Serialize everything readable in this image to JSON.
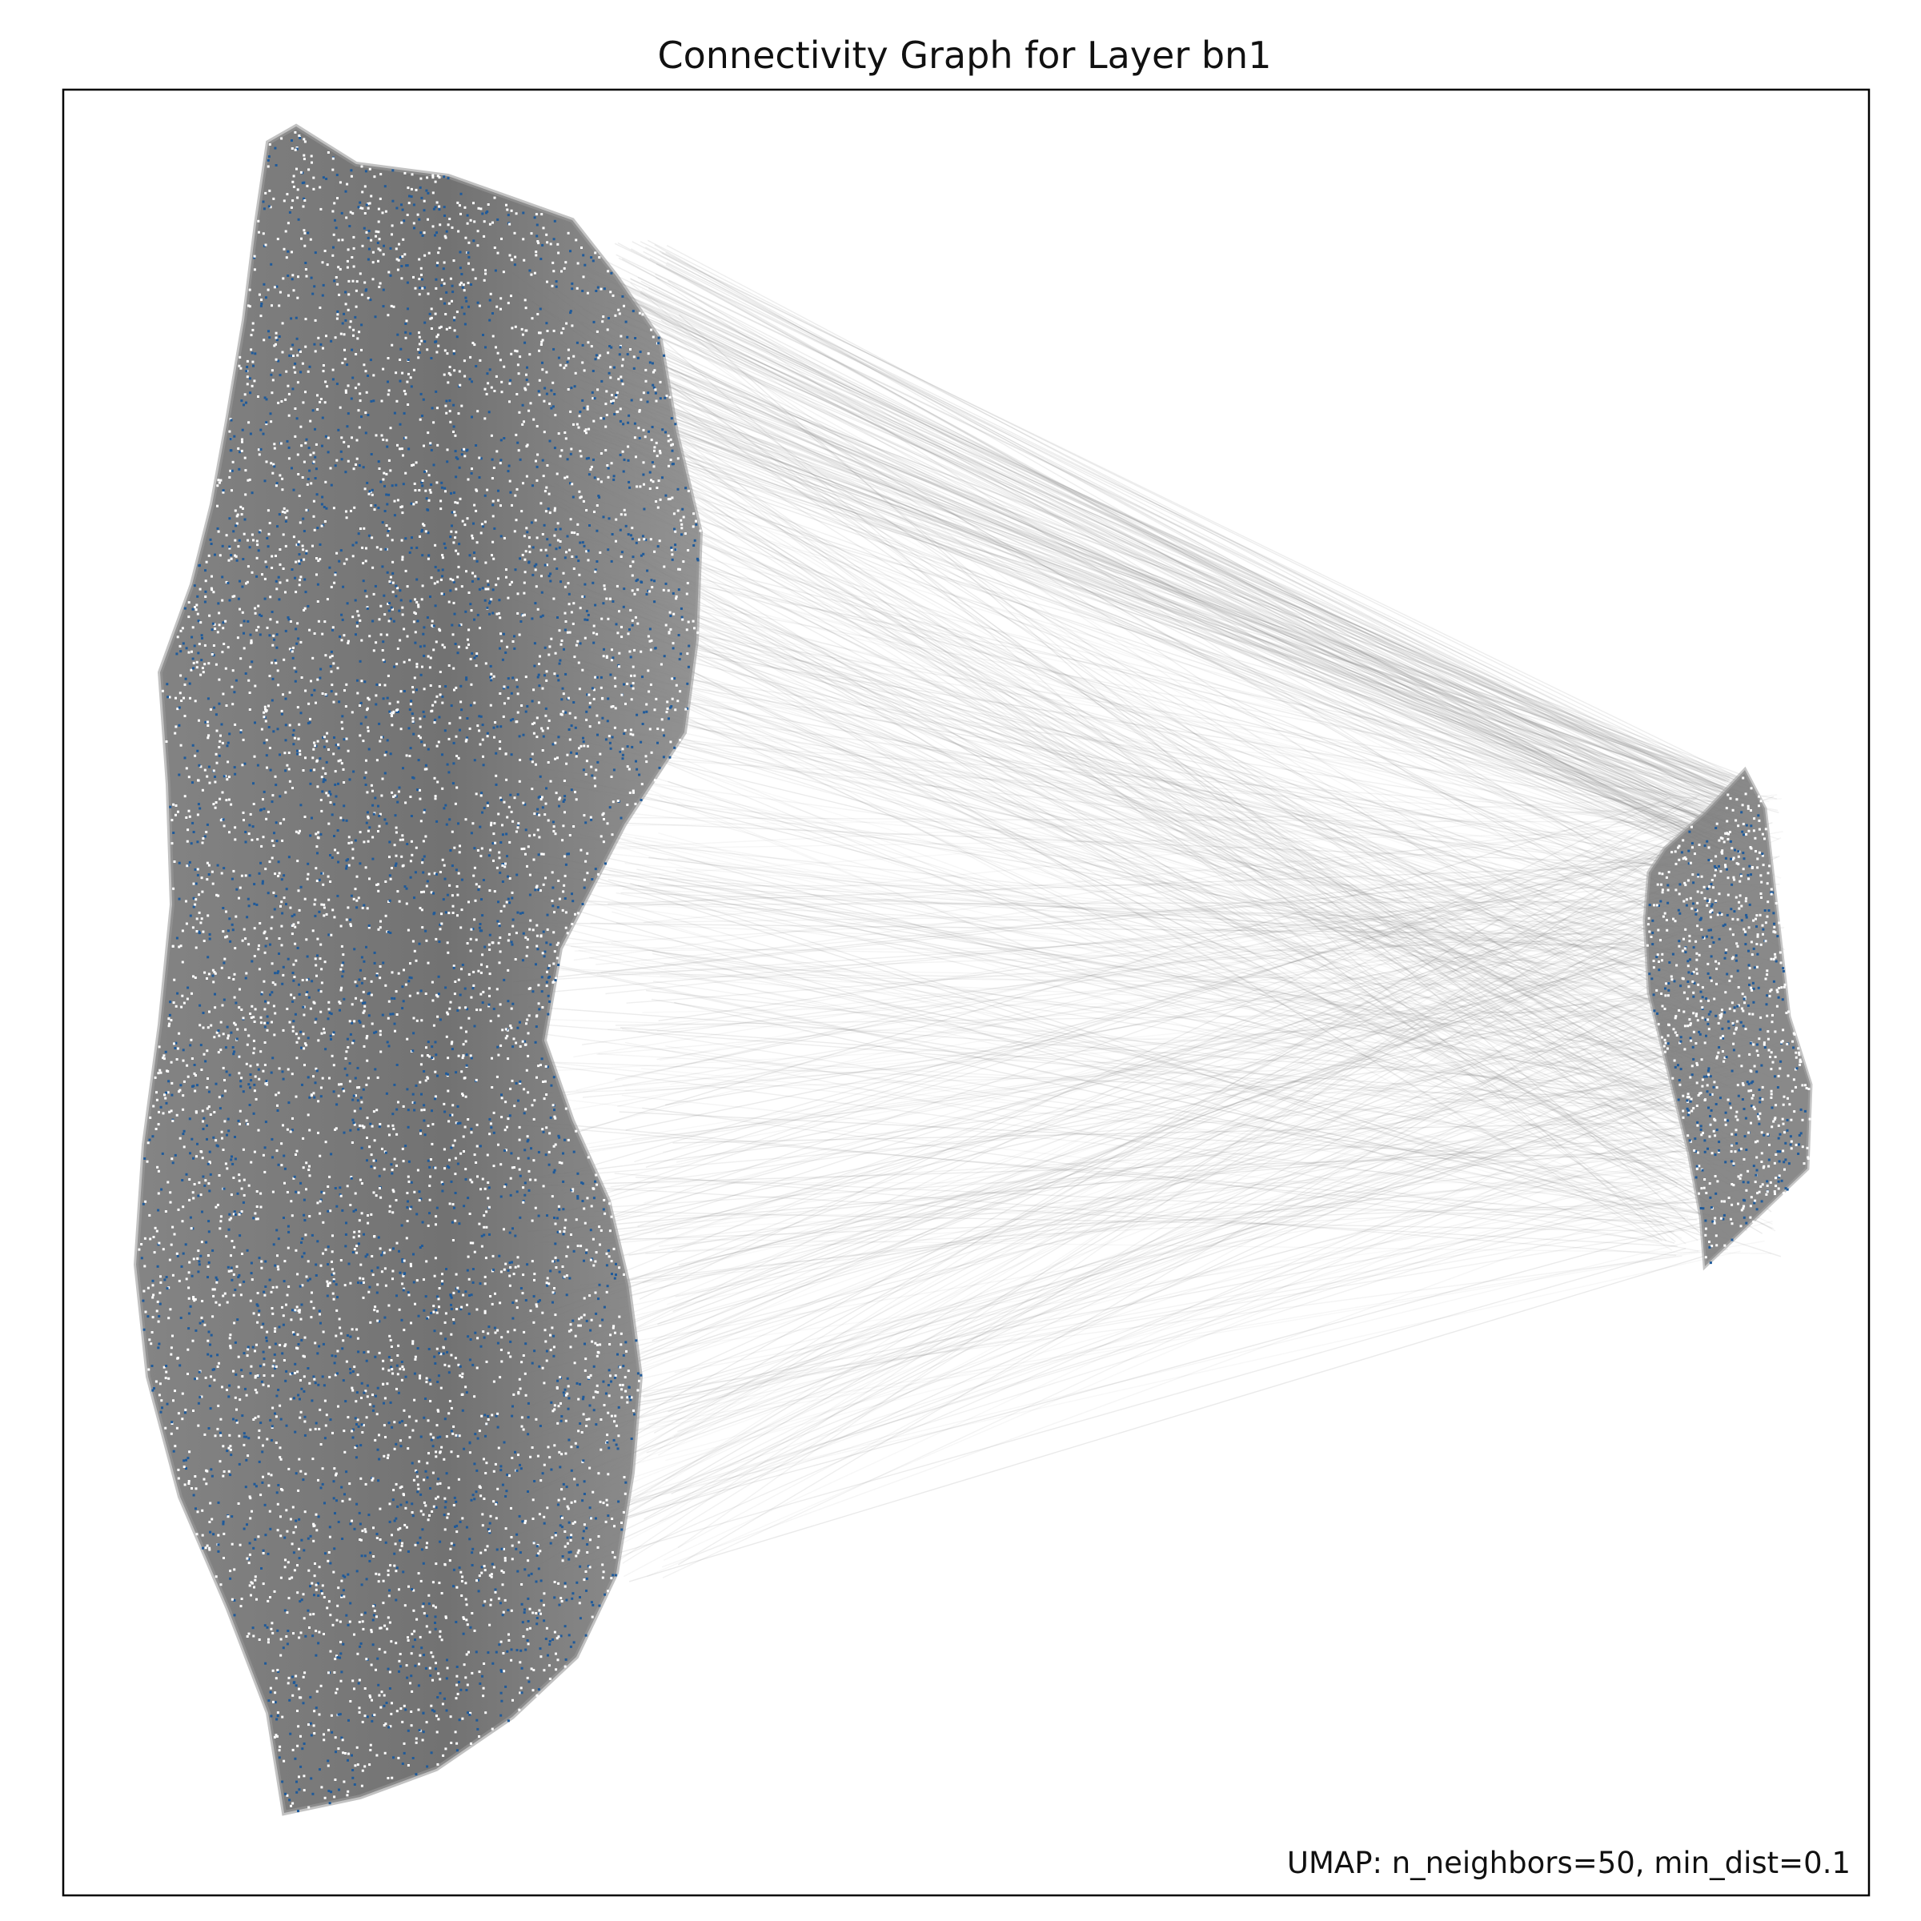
{
  "chart_data": {
    "type": "scatter",
    "title": "Connectivity Graph for Layer bn1",
    "annotation": "UMAP: n_neighbors=50, min_dist=0.1",
    "xlabel": "",
    "ylabel": "",
    "axis_ticks": false,
    "grid": false,
    "legend": "none",
    "clusters": [
      {
        "id": "large-cluster",
        "point_color": "#1f5a9a",
        "approx_points": 20000
      },
      {
        "id": "small-cluster",
        "point_color": "#1f5a9a",
        "approx_points": 2500
      }
    ],
    "edge_color": "#808080",
    "edge_style": "connectivity-graph"
  }
}
